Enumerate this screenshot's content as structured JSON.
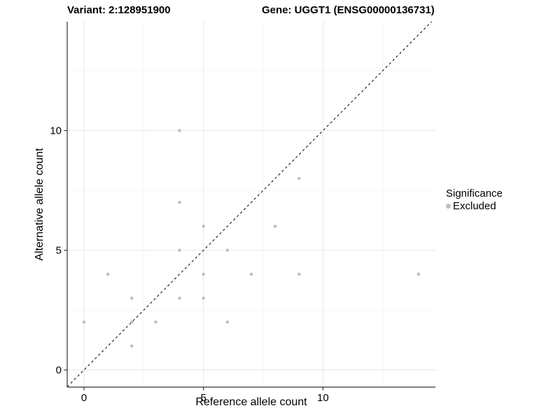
{
  "header": {
    "variant_title": "Variant: 2:128951900",
    "gene_title": "Gene: UGGT1 (ENSG00000136731)"
  },
  "chart_data": {
    "type": "scatter",
    "title_left": "Variant: 2:128951900",
    "title_right": "Gene: UGGT1 (ENSG00000136731)",
    "xlabel": "Reference allele count",
    "ylabel": "Alternative allele count",
    "xlim": [
      -0.7,
      14.7
    ],
    "ylim": [
      -0.72,
      14.55
    ],
    "x_ticks": [
      0,
      5,
      10
    ],
    "y_ticks": [
      0,
      5,
      10
    ],
    "x_minor_gridlines": [
      2.5,
      7.5,
      12.5
    ],
    "y_minor_gridlines": [
      2.5,
      7.5,
      12.5
    ],
    "grid": true,
    "identity_line": {
      "equation": "y = x",
      "style": "dashed",
      "color": "#000000"
    },
    "series": [
      {
        "name": "Excluded",
        "color": "#bdbdbd",
        "points": [
          [
            0,
            2
          ],
          [
            1,
            4
          ],
          [
            2,
            1
          ],
          [
            2,
            2
          ],
          [
            2,
            3
          ],
          [
            3,
            2
          ],
          [
            4,
            3
          ],
          [
            4,
            5
          ],
          [
            4,
            7
          ],
          [
            4,
            10
          ],
          [
            5,
            3
          ],
          [
            5,
            4
          ],
          [
            5,
            6
          ],
          [
            6,
            2
          ],
          [
            6,
            5
          ],
          [
            7,
            4
          ],
          [
            8,
            6
          ],
          [
            9,
            4
          ],
          [
            9,
            8
          ],
          [
            14,
            4
          ]
        ]
      }
    ],
    "legend": {
      "position": "right",
      "title": "Significance",
      "entries": [
        {
          "label": "Excluded",
          "color": "#bdbdbd"
        }
      ]
    }
  },
  "colors": {
    "background": "#ffffff",
    "axis_line": "#333333",
    "major_grid": "#e8e8e8",
    "minor_grid": "#f4f4f4",
    "tick_text": "#000000",
    "point": "#bdbdbd"
  }
}
